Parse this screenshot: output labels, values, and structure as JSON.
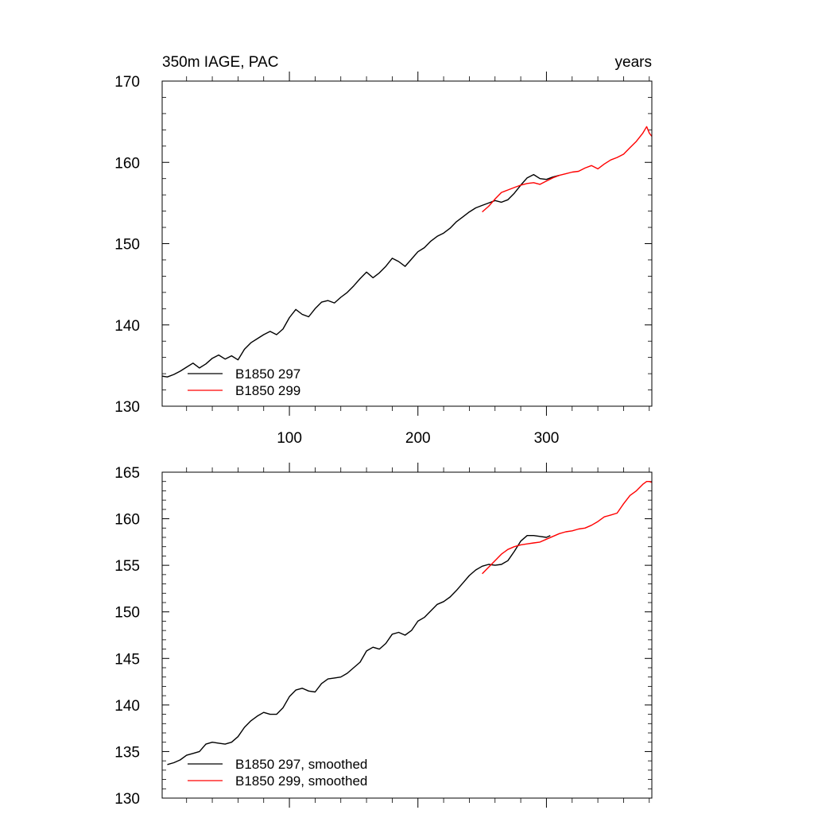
{
  "chart_data": [
    {
      "type": "line",
      "title_left": "350m IAGE, PAC",
      "title_right": "years",
      "xlim": [
        1,
        382
      ],
      "ylim": [
        130,
        170
      ],
      "x_ticks": [
        100,
        200,
        300
      ],
      "y_ticks": [
        130,
        140,
        150,
        160,
        170
      ],
      "x_tick_labels": [
        "100",
        "200",
        "300"
      ],
      "y_tick_labels": [
        "130",
        "140",
        "150",
        "160",
        "170"
      ],
      "legend_position": "bottom-left",
      "series": [
        {
          "name": "B1850 297",
          "color": "#000000",
          "x": [
            1,
            5,
            10,
            15,
            20,
            25,
            30,
            35,
            40,
            45,
            50,
            55,
            60,
            65,
            70,
            75,
            80,
            85,
            90,
            95,
            100,
            105,
            110,
            115,
            120,
            125,
            130,
            135,
            140,
            145,
            150,
            155,
            160,
            165,
            170,
            175,
            180,
            185,
            190,
            195,
            200,
            205,
            210,
            215,
            220,
            225,
            230,
            235,
            240,
            245,
            250,
            255,
            260,
            265,
            270,
            275,
            280,
            285,
            290,
            295,
            300,
            305,
            310
          ],
          "values": [
            133.7,
            133.6,
            133.9,
            134.3,
            134.8,
            135.3,
            134.7,
            135.2,
            135.9,
            136.3,
            135.8,
            136.2,
            135.7,
            137.0,
            137.8,
            138.3,
            138.8,
            139.2,
            138.8,
            139.5,
            140.9,
            141.9,
            141.3,
            141.0,
            142.0,
            142.8,
            143.0,
            142.7,
            143.4,
            144.0,
            144.8,
            145.7,
            146.5,
            145.8,
            146.4,
            147.2,
            148.2,
            147.8,
            147.2,
            148.1,
            149.0,
            149.5,
            150.3,
            150.9,
            151.3,
            151.9,
            152.7,
            153.3,
            153.9,
            154.4,
            154.7,
            155.0,
            155.3,
            155.1,
            155.4,
            156.2,
            157.2,
            158.1,
            158.5,
            158.0,
            157.9,
            158.2,
            158.4
          ]
        },
        {
          "name": "B1850 299",
          "color": "#ff0000",
          "x": [
            250,
            255,
            260,
            265,
            270,
            275,
            280,
            285,
            290,
            295,
            300,
            305,
            310,
            315,
            320,
            325,
            330,
            335,
            340,
            345,
            350,
            355,
            360,
            365,
            370,
            375,
            378,
            380,
            382
          ],
          "values": [
            153.9,
            154.6,
            155.5,
            156.3,
            156.6,
            156.9,
            157.2,
            157.4,
            157.5,
            157.3,
            157.7,
            158.1,
            158.4,
            158.6,
            158.8,
            158.9,
            159.3,
            159.6,
            159.2,
            159.8,
            160.3,
            160.6,
            161.0,
            161.8,
            162.6,
            163.6,
            164.4,
            163.6,
            163.2
          ]
        }
      ]
    },
    {
      "type": "line",
      "xlim": [
        1,
        382
      ],
      "ylim": [
        130,
        165
      ],
      "x_ticks": [
        100,
        200,
        300
      ],
      "y_ticks": [
        130,
        135,
        140,
        145,
        150,
        155,
        160,
        165
      ],
      "y_tick_labels": [
        "130",
        "135",
        "140",
        "145",
        "150",
        "155",
        "160",
        "165"
      ],
      "legend_position": "bottom-left",
      "series": [
        {
          "name": "B1850 297, smoothed",
          "color": "#000000",
          "x": [
            5,
            10,
            15,
            20,
            25,
            30,
            35,
            40,
            45,
            50,
            55,
            60,
            65,
            70,
            75,
            80,
            85,
            90,
            95,
            100,
            105,
            110,
            115,
            120,
            125,
            130,
            135,
            140,
            145,
            150,
            155,
            160,
            165,
            170,
            175,
            180,
            185,
            190,
            195,
            200,
            205,
            210,
            215,
            220,
            225,
            230,
            235,
            240,
            245,
            250,
            255,
            260,
            265,
            270,
            275,
            280,
            285,
            290,
            295,
            300,
            303
          ],
          "values": [
            133.6,
            133.8,
            134.1,
            134.6,
            134.8,
            135.0,
            135.8,
            136.0,
            135.9,
            135.8,
            136.0,
            136.6,
            137.6,
            138.3,
            138.8,
            139.2,
            139.0,
            139.0,
            139.7,
            140.9,
            141.6,
            141.8,
            141.5,
            141.4,
            142.3,
            142.8,
            142.9,
            143.0,
            143.4,
            144.0,
            144.6,
            145.8,
            146.2,
            146.0,
            146.6,
            147.6,
            147.8,
            147.5,
            148.0,
            149.0,
            149.4,
            150.1,
            150.8,
            151.1,
            151.6,
            152.3,
            153.1,
            153.9,
            154.5,
            154.9,
            155.1,
            155.0,
            155.1,
            155.5,
            156.5,
            157.6,
            158.2,
            158.2,
            158.1,
            158.0,
            158.2
          ]
        },
        {
          "name": "B1850 299, smoothed",
          "color": "#ff0000",
          "x": [
            250,
            255,
            260,
            265,
            270,
            275,
            280,
            285,
            290,
            295,
            300,
            305,
            310,
            315,
            320,
            325,
            330,
            335,
            340,
            345,
            350,
            355,
            360,
            365,
            370,
            375,
            378,
            380,
            382
          ],
          "values": [
            154.1,
            154.8,
            155.5,
            156.2,
            156.7,
            157.0,
            157.2,
            157.3,
            157.4,
            157.5,
            157.8,
            158.1,
            158.4,
            158.6,
            158.7,
            158.9,
            159.0,
            159.3,
            159.7,
            160.2,
            160.4,
            160.6,
            161.6,
            162.5,
            163.0,
            163.7,
            164.0,
            164.0,
            163.9
          ]
        }
      ]
    }
  ]
}
